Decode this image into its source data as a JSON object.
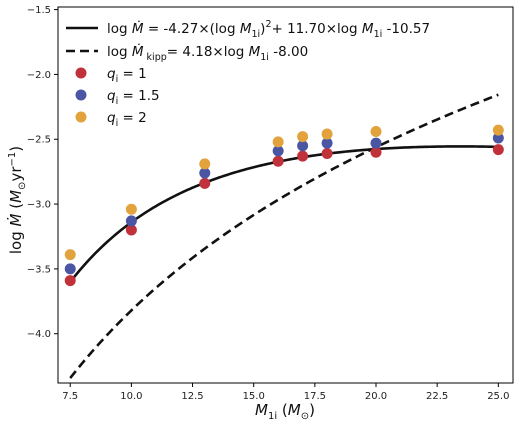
{
  "chart_data": {
    "type": "scatter",
    "xlabel": "M_1i (M_⊙)",
    "ylabel": "log Ṁ (M_⊙yr⁻¹)",
    "xlim": [
      7.0,
      25.6
    ],
    "ylim": [
      -4.38,
      -1.48
    ],
    "x_ticks": [
      7.5,
      10.0,
      12.5,
      15.0,
      17.5,
      20.0,
      22.5,
      25.0
    ],
    "x_tick_labels": [
      "7.5",
      "10.0",
      "12.5",
      "15.0",
      "17.5",
      "20.0",
      "22.5",
      "25.0"
    ],
    "y_ticks": [
      -4.0,
      -3.5,
      -3.0,
      -2.5,
      -2.0,
      -1.5
    ],
    "y_tick_labels": [
      "−4.0",
      "−3.5",
      "−3.0",
      "−2.5",
      "−2.0",
      "−1.5"
    ],
    "grid": false,
    "legend_position": "top-left",
    "x": [
      7.5,
      10,
      13,
      16,
      17,
      18,
      20,
      25
    ],
    "series": [
      {
        "name": "q_i = 1",
        "label_main": "q",
        "label_sub": "i",
        "label_rest": " = 1",
        "color": "#c0313a",
        "values": [
          -3.59,
          -3.2,
          -2.84,
          -2.67,
          -2.63,
          -2.61,
          -2.6,
          -2.58
        ]
      },
      {
        "name": "q_i = 1.5",
        "label_main": "q",
        "label_sub": "i",
        "label_rest": " = 1.5",
        "color": "#4a56a3",
        "values": [
          -3.5,
          -3.13,
          -2.76,
          -2.59,
          -2.55,
          -2.53,
          -2.53,
          -2.49
        ]
      },
      {
        "name": "q_i = 2",
        "label_main": "q",
        "label_sub": "i",
        "label_rest": " = 2",
        "color": "#e2a23c",
        "values": [
          -3.39,
          -3.04,
          -2.69,
          -2.52,
          -2.48,
          -2.46,
          -2.44,
          -2.43
        ]
      }
    ],
    "fit_lines": [
      {
        "name": "fit",
        "style": "solid",
        "color": "#111111",
        "legend": "log Ṁ = -4.27×(log M1i)²+ 11.70×log M1i -10.57",
        "coeffs": {
          "a": -4.27,
          "b": 11.7,
          "c": -10.57
        }
      },
      {
        "name": "kipp",
        "style": "dashed",
        "color": "#111111",
        "legend": "log Ṁ kipp= 4.18×log M1i -8.00",
        "coeffs": {
          "a": 0,
          "b": 4.18,
          "c": -8.0
        }
      }
    ]
  }
}
